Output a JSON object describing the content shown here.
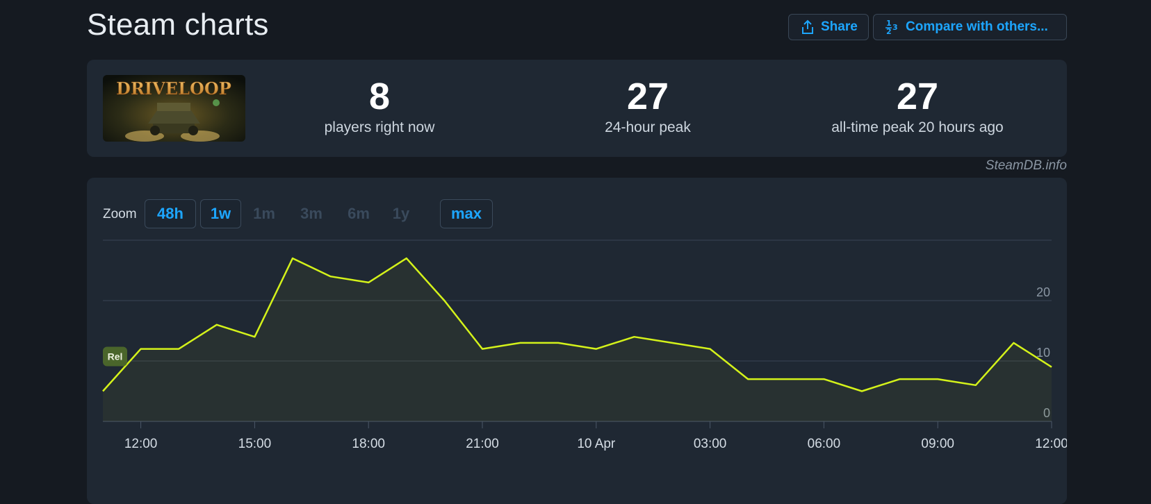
{
  "header": {
    "title": "Steam charts",
    "share_label": "Share",
    "compare_label": "Compare with others...",
    "share_icon": "share-icon",
    "compare_icon": "fraction-icon"
  },
  "game": {
    "name": "DRIVELOOP"
  },
  "stats": [
    {
      "value": "8",
      "label": "players right now"
    },
    {
      "value": "27",
      "label": "24-hour peak"
    },
    {
      "value": "27",
      "label": "all-time peak 20 hours ago"
    }
  ],
  "credit": "SteamDB.info",
  "zoom": {
    "label": "Zoom",
    "options": [
      {
        "label": "48h",
        "state": "active"
      },
      {
        "label": "1w",
        "state": "active"
      },
      {
        "label": "1m",
        "state": "disabled"
      },
      {
        "label": "3m",
        "state": "disabled"
      },
      {
        "label": "6m",
        "state": "disabled"
      },
      {
        "label": "1y",
        "state": "disabled"
      },
      {
        "label": "max",
        "state": "active"
      }
    ]
  },
  "colors": {
    "line": "#d4f21a",
    "accent": "#1da6ff",
    "grid": "#3a4554",
    "release_badge": "#4f6b2a"
  },
  "chart_data": {
    "type": "line",
    "x": [
      "11:00",
      "12:00",
      "13:00",
      "14:00",
      "15:00",
      "16:00",
      "17:00",
      "18:00",
      "19:00",
      "20:00",
      "21:00",
      "22:00",
      "23:00",
      "10 Apr 00:00",
      "01:00",
      "02:00",
      "03:00",
      "04:00",
      "05:00",
      "06:00",
      "07:00",
      "08:00",
      "09:00",
      "10:00",
      "11:00",
      "12:00"
    ],
    "x_start_hours": 11,
    "series": [
      {
        "values": [
          5,
          12,
          12,
          16,
          14,
          27,
          24,
          23,
          27,
          20,
          12,
          13,
          13,
          12,
          14,
          13,
          12,
          7,
          7,
          7,
          5,
          7,
          7,
          6,
          13,
          9
        ]
      }
    ],
    "x_tick_labels": [
      "12:00",
      "15:00",
      "18:00",
      "21:00",
      "10 Apr",
      "03:00",
      "06:00",
      "09:00",
      "12:00"
    ],
    "y_tick_labels": [
      "0",
      "10",
      "20"
    ],
    "ylim": [
      0,
      30
    ],
    "grid": true,
    "release_marker_label": "Rel"
  }
}
